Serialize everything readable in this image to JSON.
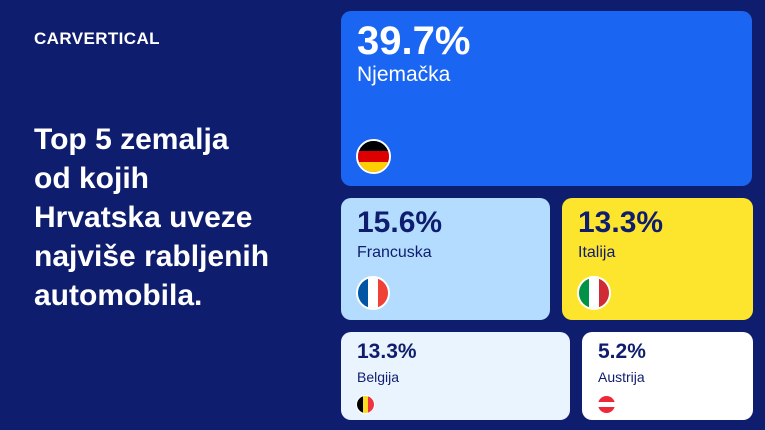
{
  "brand": {
    "logo_text": "CARVERTICAL"
  },
  "headline": {
    "lines": [
      "Top 5 zemalja",
      "od kojih",
      "Hrvatska uveze",
      "najviše rabljenih",
      "automobila."
    ]
  },
  "chart_data": {
    "type": "treemap",
    "title": "Top 5 zemalja od kojih Hrvatska uveze najviše rabljenih automobila.",
    "categories": [
      "Njemačka",
      "Francuska",
      "Italija",
      "Belgija",
      "Austrija"
    ],
    "values": [
      39.7,
      15.6,
      13.3,
      13.3,
      5.2
    ],
    "labels": [
      "39.7%",
      "15.6%",
      "13.3%",
      "13.3%",
      "5.2%"
    ],
    "unit": "%",
    "tile_colors": [
      "#1a66f2",
      "#b3dcff",
      "#fde52e",
      "#eaf4fe",
      "#ffffff"
    ],
    "flags": [
      {
        "country": "Njemačka",
        "orientation": "horizontal",
        "colors": [
          "#000000",
          "#dd0000",
          "#ffce00"
        ]
      },
      {
        "country": "Francuska",
        "orientation": "vertical",
        "colors": [
          "#0055a4",
          "#ffffff",
          "#ef4135"
        ]
      },
      {
        "country": "Italija",
        "orientation": "vertical",
        "colors": [
          "#009246",
          "#ffffff",
          "#ce2b37"
        ]
      },
      {
        "country": "Belgija",
        "orientation": "vertical",
        "colors": [
          "#000000",
          "#fdda24",
          "#ef3340"
        ]
      },
      {
        "country": "Austrija",
        "orientation": "horizontal",
        "colors": [
          "#ed2939",
          "#ffffff",
          "#ed2939"
        ]
      }
    ]
  }
}
